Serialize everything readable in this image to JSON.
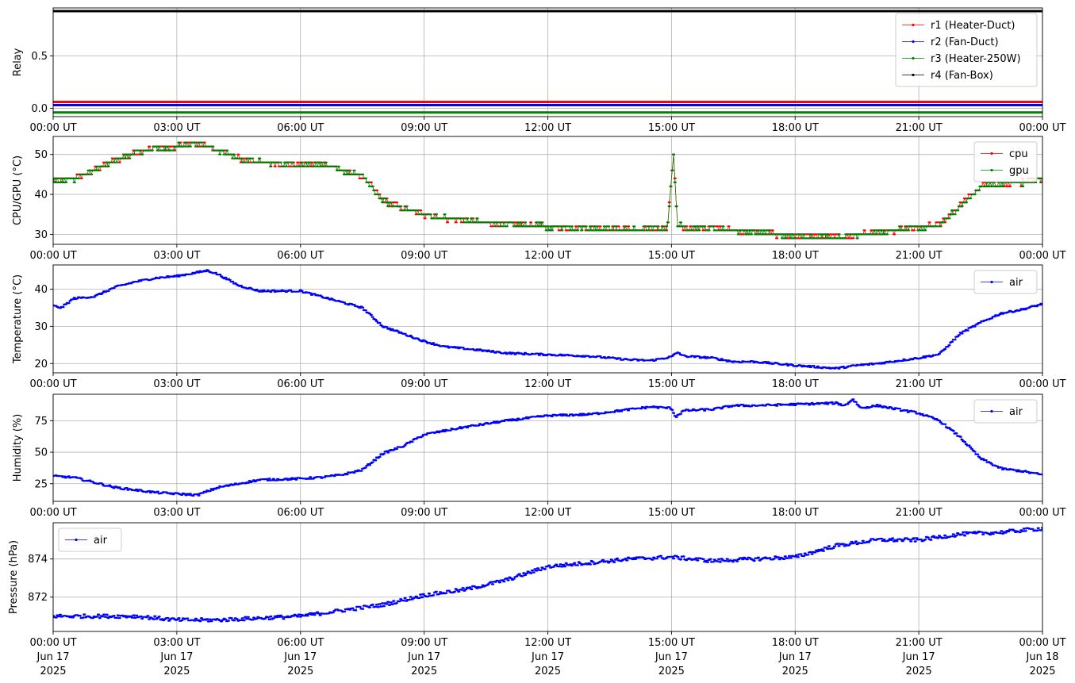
{
  "chart_data": [
    {
      "type": "line",
      "ylabel": "Relay",
      "ylim": [
        -0.08,
        0.96
      ],
      "yticks": [
        0.0,
        0.5
      ],
      "ytick_labels": [
        "0.0",
        "0.5"
      ],
      "grid": true,
      "legend_position": "top-right",
      "series": [
        {
          "name": "r1 (Heater-Duct)",
          "color": "#ff0000",
          "constant": 0.06
        },
        {
          "name": "r2 (Fan-Duct)",
          "color": "#0000ff",
          "constant": 0.03
        },
        {
          "name": "r3 (Heater-250W)",
          "color": "#008000",
          "constant": -0.04
        },
        {
          "name": "r4 (Fan-Box)",
          "color": "#000000",
          "constant": 0.93
        }
      ]
    },
    {
      "type": "line",
      "ylabel": "CPU/GPU (°C)",
      "ylim": [
        27.5,
        54.5
      ],
      "yticks": [
        30,
        40,
        50
      ],
      "ytick_labels": [
        "30",
        "40",
        "50"
      ],
      "grid": true,
      "legend_position": "top-right",
      "series": [
        {
          "name": "cpu",
          "color": "#ff0000",
          "noise": 0.6,
          "points": [
            [
              0,
              43.5
            ],
            [
              0.5,
              44
            ],
            [
              1,
              46
            ],
            [
              1.5,
              48.5
            ],
            [
              2,
              50.5
            ],
            [
              2.5,
              51.5
            ],
            [
              3,
              52
            ],
            [
              3.5,
              53
            ],
            [
              4,
              51
            ],
            [
              4.5,
              49
            ],
            [
              5,
              48
            ],
            [
              6,
              47.5
            ],
            [
              6.5,
              47.5
            ],
            [
              7,
              46
            ],
            [
              7.5,
              44.5
            ],
            [
              8,
              38.5
            ],
            [
              8.5,
              36.5
            ],
            [
              9,
              35
            ],
            [
              9.5,
              34
            ],
            [
              10,
              33.5
            ],
            [
              11,
              32.5
            ],
            [
              12,
              32
            ],
            [
              13,
              31.5
            ],
            [
              14,
              31
            ],
            [
              14.9,
              31.5
            ],
            [
              15.05,
              49.5
            ],
            [
              15.15,
              32
            ],
            [
              16,
              31.5
            ],
            [
              17,
              30.5
            ],
            [
              18,
              29.5
            ],
            [
              19,
              29.2
            ],
            [
              20,
              30.5
            ],
            [
              21,
              31.5
            ],
            [
              21.5,
              32.5
            ],
            [
              22,
              37
            ],
            [
              22.5,
              42
            ],
            [
              23,
              42.5
            ],
            [
              24,
              43.5
            ]
          ]
        },
        {
          "name": "gpu",
          "color": "#008000",
          "noise": 0.6,
          "points": [
            [
              0,
              43.5
            ],
            [
              0.5,
              44
            ],
            [
              1,
              46
            ],
            [
              1.5,
              48.5
            ],
            [
              2,
              50.5
            ],
            [
              2.5,
              51.5
            ],
            [
              3,
              52
            ],
            [
              3.5,
              53
            ],
            [
              4,
              51
            ],
            [
              4.5,
              49
            ],
            [
              5,
              48
            ],
            [
              6,
              47.5
            ],
            [
              6.5,
              47.5
            ],
            [
              7,
              46
            ],
            [
              7.5,
              44.5
            ],
            [
              8,
              38.5
            ],
            [
              8.5,
              36.5
            ],
            [
              9,
              35
            ],
            [
              9.5,
              34
            ],
            [
              10,
              33.5
            ],
            [
              11,
              32.5
            ],
            [
              12,
              32
            ],
            [
              13,
              31.5
            ],
            [
              14,
              31
            ],
            [
              14.9,
              31.5
            ],
            [
              15.05,
              49.5
            ],
            [
              15.15,
              32
            ],
            [
              16,
              31.5
            ],
            [
              17,
              30.5
            ],
            [
              18,
              29.5
            ],
            [
              19,
              29.2
            ],
            [
              20,
              30.5
            ],
            [
              21,
              31.5
            ],
            [
              21.5,
              32.5
            ],
            [
              22,
              37
            ],
            [
              22.5,
              42
            ],
            [
              23,
              42.5
            ],
            [
              24,
              43.5
            ]
          ]
        }
      ]
    },
    {
      "type": "line",
      "ylabel": "Temperature (°C)",
      "ylim": [
        17.5,
        46.5
      ],
      "yticks": [
        20,
        30,
        40
      ],
      "ytick_labels": [
        "20",
        "30",
        "40"
      ],
      "grid": true,
      "legend_position": "top-right",
      "series": [
        {
          "name": "air",
          "color": "#0000ff",
          "noise": 0.25,
          "points": [
            [
              0,
              35.5
            ],
            [
              0.2,
              35
            ],
            [
              0.5,
              37.5
            ],
            [
              1,
              38
            ],
            [
              1.5,
              40.5
            ],
            [
              2,
              42
            ],
            [
              2.5,
              43
            ],
            [
              3,
              43.5
            ],
            [
              3.5,
              44.5
            ],
            [
              3.75,
              45
            ],
            [
              4,
              44
            ],
            [
              4.5,
              41
            ],
            [
              5,
              39.5
            ],
            [
              5.5,
              39.5
            ],
            [
              6,
              39.5
            ],
            [
              6.5,
              38
            ],
            [
              7,
              36.5
            ],
            [
              7.5,
              35
            ],
            [
              7.8,
              32
            ],
            [
              8,
              30
            ],
            [
              8.5,
              28
            ],
            [
              9,
              26
            ],
            [
              9.5,
              24.5
            ],
            [
              10,
              24
            ],
            [
              11,
              22.8
            ],
            [
              12,
              22.4
            ],
            [
              13,
              22
            ],
            [
              14,
              21
            ],
            [
              14.5,
              20.8
            ],
            [
              15,
              21.8
            ],
            [
              15.15,
              23
            ],
            [
              15.3,
              22
            ],
            [
              16,
              21.5
            ],
            [
              16.5,
              20.5
            ],
            [
              17,
              20.5
            ],
            [
              18,
              19.5
            ],
            [
              19,
              18.7
            ],
            [
              19.5,
              19.5
            ],
            [
              20,
              20
            ],
            [
              21,
              21.5
            ],
            [
              21.5,
              22.5
            ],
            [
              22,
              28
            ],
            [
              22.5,
              31
            ],
            [
              23,
              33.5
            ],
            [
              23.5,
              34.5
            ],
            [
              24,
              36
            ]
          ]
        }
      ]
    },
    {
      "type": "line",
      "ylabel": "Humidity (%)",
      "ylim": [
        11,
        96
      ],
      "yticks": [
        25,
        50,
        75
      ],
      "ytick_labels": [
        "25",
        "50",
        "75"
      ],
      "grid": true,
      "legend_position": "top-right",
      "series": [
        {
          "name": "air",
          "color": "#0000ff",
          "noise": 0.8,
          "points": [
            [
              0,
              31
            ],
            [
              0.5,
              30
            ],
            [
              1,
              26
            ],
            [
              1.5,
              22
            ],
            [
              2,
              20
            ],
            [
              2.5,
              18
            ],
            [
              3,
              17
            ],
            [
              3.5,
              16
            ],
            [
              4,
              22
            ],
            [
              4.5,
              25
            ],
            [
              5,
              28
            ],
            [
              6,
              29
            ],
            [
              6.5,
              30
            ],
            [
              7,
              32
            ],
            [
              7.5,
              36
            ],
            [
              8,
              49
            ],
            [
              8.5,
              55
            ],
            [
              9,
              64
            ],
            [
              9.5,
              67
            ],
            [
              10,
              70
            ],
            [
              11,
              75
            ],
            [
              12,
              79
            ],
            [
              13,
              80
            ],
            [
              14,
              84
            ],
            [
              14.5,
              86
            ],
            [
              15,
              85
            ],
            [
              15.1,
              78
            ],
            [
              15.3,
              83
            ],
            [
              16,
              84
            ],
            [
              16.5,
              87
            ],
            [
              17,
              87
            ],
            [
              18,
              88
            ],
            [
              19,
              89
            ],
            [
              19.2,
              87
            ],
            [
              19.4,
              92
            ],
            [
              19.6,
              85
            ],
            [
              20,
              87
            ],
            [
              21,
              81
            ],
            [
              21.5,
              75
            ],
            [
              22,
              62
            ],
            [
              22.5,
              45
            ],
            [
              23,
              37
            ],
            [
              23.5,
              35
            ],
            [
              24,
              32
            ]
          ]
        }
      ]
    },
    {
      "type": "line",
      "ylabel": "Pressure (hPa)",
      "ylim": [
        870.2,
        875.9
      ],
      "yticks": [
        872,
        874
      ],
      "ytick_labels": [
        "872",
        "874"
      ],
      "grid": true,
      "legend_position": "top-left",
      "series": [
        {
          "name": "air",
          "color": "#0000ff",
          "noise": 0.1,
          "points": [
            [
              0,
              871
            ],
            [
              1,
              871
            ],
            [
              2,
              871
            ],
            [
              3,
              870.8
            ],
            [
              4,
              870.8
            ],
            [
              5,
              870.9
            ],
            [
              6,
              871
            ],
            [
              7,
              871.3
            ],
            [
              8,
              871.6
            ],
            [
              9,
              872.1
            ],
            [
              10,
              872.4
            ],
            [
              11,
              872.9
            ],
            [
              12,
              873.6
            ],
            [
              13,
              873.8
            ],
            [
              14,
              874
            ],
            [
              15,
              874.1
            ],
            [
              16,
              873.9
            ],
            [
              17,
              874
            ],
            [
              18,
              874.1
            ],
            [
              19,
              874.7
            ],
            [
              20,
              875
            ],
            [
              21,
              875
            ],
            [
              22,
              875.3
            ],
            [
              23,
              875.4
            ],
            [
              24,
              875.6
            ]
          ]
        }
      ]
    }
  ],
  "x_axis": {
    "tick_labels": [
      "00:00 UT",
      "03:00 UT",
      "06:00 UT",
      "09:00 UT",
      "12:00 UT",
      "15:00 UT",
      "18:00 UT",
      "21:00 UT",
      "00:00 UT"
    ],
    "bottom_date_labels": [
      [
        "Jun 17",
        "2025"
      ],
      [
        "Jun 17",
        "2025"
      ],
      [
        "Jun 17",
        "2025"
      ],
      [
        "Jun 17",
        "2025"
      ],
      [
        "Jun 17",
        "2025"
      ],
      [
        "Jun 17",
        "2025"
      ],
      [
        "Jun 17",
        "2025"
      ],
      [
        "Jun 17",
        "2025"
      ],
      [
        "Jun 18",
        "2025"
      ]
    ]
  }
}
